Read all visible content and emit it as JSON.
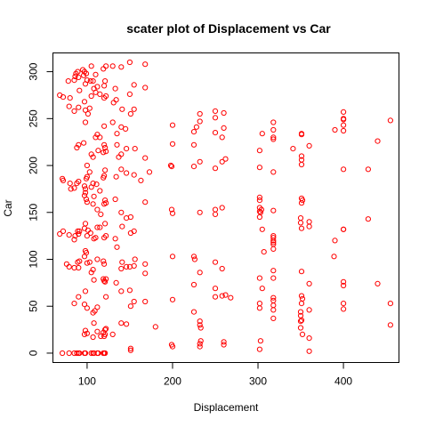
{
  "chart_data": {
    "type": "scatter",
    "title": "scater plot of Displacement vs Car",
    "xlabel": "Displacement",
    "ylabel": "Car",
    "xlim": [
      60,
      465
    ],
    "ylim": [
      -10,
      320
    ],
    "xticks": [
      100,
      200,
      300,
      400
    ],
    "yticks": [
      0,
      50,
      100,
      150,
      200,
      250,
      300
    ],
    "grid": false,
    "marker": "open-circle",
    "color": "#ff0000",
    "points": [
      [
        71,
        0
      ],
      [
        79,
        0
      ],
      [
        85,
        0
      ],
      [
        88,
        0
      ],
      [
        90,
        0
      ],
      [
        91,
        0
      ],
      [
        97,
        0
      ],
      [
        98,
        0
      ],
      [
        105,
        0
      ],
      [
        107,
        0
      ],
      [
        108,
        0
      ],
      [
        112,
        0
      ],
      [
        113,
        0
      ],
      [
        119,
        0
      ],
      [
        120,
        0
      ],
      [
        121,
        0
      ],
      [
        68,
        275
      ],
      [
        72,
        273
      ],
      [
        78,
        290
      ],
      [
        80,
        272
      ],
      [
        85,
        291
      ],
      [
        86,
        295
      ],
      [
        87,
        298
      ],
      [
        89,
        300
      ],
      [
        90,
        294
      ],
      [
        91,
        280
      ],
      [
        95,
        302
      ],
      [
        96,
        296
      ],
      [
        97,
        300
      ],
      [
        98,
        287
      ],
      [
        99,
        298
      ],
      [
        100,
        291
      ],
      [
        104,
        290
      ],
      [
        105,
        306
      ],
      [
        107,
        290
      ],
      [
        110,
        297
      ],
      [
        112,
        284
      ],
      [
        119,
        303
      ],
      [
        120,
        285
      ],
      [
        121,
        290
      ],
      [
        122,
        306
      ],
      [
        130,
        306
      ],
      [
        133,
        282
      ],
      [
        140,
        305
      ],
      [
        150,
        310
      ],
      [
        168,
        308
      ],
      [
        79,
        263
      ],
      [
        85,
        258
      ],
      [
        90,
        262
      ],
      [
        97,
        268
      ],
      [
        98,
        259
      ],
      [
        101,
        255
      ],
      [
        103,
        261
      ],
      [
        105,
        274
      ],
      [
        108,
        282
      ],
      [
        110,
        278
      ],
      [
        115,
        276
      ],
      [
        120,
        272
      ],
      [
        122,
        274
      ],
      [
        131,
        267
      ],
      [
        134,
        270
      ],
      [
        141,
        260
      ],
      [
        150,
        276
      ],
      [
        155,
        286
      ],
      [
        168,
        283
      ],
      [
        98,
        246
      ],
      [
        120,
        242
      ],
      [
        130,
        246
      ],
      [
        135,
        234
      ],
      [
        140,
        241
      ],
      [
        145,
        239
      ],
      [
        151,
        255
      ],
      [
        155,
        260
      ],
      [
        200,
        243
      ],
      [
        225,
        236
      ],
      [
        232,
        247
      ],
      [
        250,
        251
      ],
      [
        250,
        258
      ],
      [
        260,
        256
      ],
      [
        305,
        234
      ],
      [
        318,
        238
      ],
      [
        351,
        234
      ],
      [
        400,
        243
      ],
      [
        400,
        249
      ],
      [
        400,
        257
      ],
      [
        455,
        248
      ],
      [
        88,
        219
      ],
      [
        90,
        222
      ],
      [
        96,
        224
      ],
      [
        100,
        200
      ],
      [
        105,
        212
      ],
      [
        107,
        209
      ],
      [
        110,
        230
      ],
      [
        112,
        233
      ],
      [
        113,
        216
      ],
      [
        115,
        230
      ],
      [
        119,
        214
      ],
      [
        120,
        222
      ],
      [
        121,
        219
      ],
      [
        122,
        215
      ],
      [
        135,
        222
      ],
      [
        137,
        209
      ],
      [
        140,
        212
      ],
      [
        146,
        218
      ],
      [
        156,
        218
      ],
      [
        168,
        208
      ],
      [
        200,
        223
      ],
      [
        225,
        222
      ],
      [
        228,
        241
      ],
      [
        232,
        255
      ],
      [
        250,
        235
      ],
      [
        258,
        230
      ],
      [
        260,
        240
      ],
      [
        302,
        216
      ],
      [
        318,
        228
      ],
      [
        318,
        230
      ],
      [
        318,
        246
      ],
      [
        341,
        218
      ],
      [
        351,
        233
      ],
      [
        360,
        221
      ],
      [
        390,
        238
      ],
      [
        400,
        237
      ],
      [
        400,
        250
      ],
      [
        440,
        226
      ],
      [
        71,
        186
      ],
      [
        72,
        184
      ],
      [
        80,
        181
      ],
      [
        81,
        175
      ],
      [
        85,
        176
      ],
      [
        88,
        181
      ],
      [
        90,
        183
      ],
      [
        97,
        178
      ],
      [
        98,
        175
      ],
      [
        99,
        186
      ],
      [
        100,
        188
      ],
      [
        103,
        193
      ],
      [
        105,
        177
      ],
      [
        107,
        181
      ],
      [
        108,
        167
      ],
      [
        111,
        180
      ],
      [
        115,
        173
      ],
      [
        119,
        187
      ],
      [
        120,
        189
      ],
      [
        121,
        195
      ],
      [
        134,
        188
      ],
      [
        140,
        196
      ],
      [
        146,
        192
      ],
      [
        155,
        190
      ],
      [
        163,
        184
      ],
      [
        173,
        193
      ],
      [
        198,
        200
      ],
      [
        199,
        199
      ],
      [
        225,
        199
      ],
      [
        232,
        204
      ],
      [
        250,
        197
      ],
      [
        258,
        204
      ],
      [
        262,
        207
      ],
      [
        302,
        198
      ],
      [
        318,
        193
      ],
      [
        351,
        201
      ],
      [
        351,
        206
      ],
      [
        351,
        210
      ],
      [
        400,
        196
      ],
      [
        429,
        196
      ],
      [
        97,
        168
      ],
      [
        98,
        171
      ],
      [
        99,
        164
      ],
      [
        100,
        161
      ],
      [
        107,
        159
      ],
      [
        112,
        153
      ],
      [
        116,
        148
      ],
      [
        120,
        159
      ],
      [
        121,
        163
      ],
      [
        122,
        160
      ],
      [
        133,
        164
      ],
      [
        140,
        150
      ],
      [
        146,
        144
      ],
      [
        151,
        145
      ],
      [
        168,
        161
      ],
      [
        199,
        153
      ],
      [
        200,
        149
      ],
      [
        232,
        150
      ],
      [
        250,
        148
      ],
      [
        250,
        153
      ],
      [
        258,
        155
      ],
      [
        302,
        163
      ],
      [
        302,
        166
      ],
      [
        302,
        155
      ],
      [
        302,
        151
      ],
      [
        302,
        145
      ],
      [
        303,
        150
      ],
      [
        304,
        153
      ],
      [
        318,
        152
      ],
      [
        350,
        144
      ],
      [
        351,
        160
      ],
      [
        351,
        165
      ],
      [
        352,
        163
      ],
      [
        360,
        140
      ],
      [
        400,
        132
      ],
      [
        429,
        143
      ],
      [
        68,
        127
      ],
      [
        72,
        130
      ],
      [
        79,
        126
      ],
      [
        85,
        121
      ],
      [
        86,
        125
      ],
      [
        89,
        130
      ],
      [
        90,
        127
      ],
      [
        91,
        130
      ],
      [
        97,
        133
      ],
      [
        98,
        138
      ],
      [
        100,
        125
      ],
      [
        101,
        131
      ],
      [
        104,
        128
      ],
      [
        108,
        122
      ],
      [
        110,
        123
      ],
      [
        112,
        134
      ],
      [
        115,
        134
      ],
      [
        120,
        123
      ],
      [
        121,
        138
      ],
      [
        122,
        125
      ],
      [
        133,
        122
      ],
      [
        135,
        113
      ],
      [
        141,
        135
      ],
      [
        151,
        128
      ],
      [
        155,
        130
      ],
      [
        305,
        132
      ],
      [
        307,
        108
      ],
      [
        318,
        120
      ],
      [
        318,
        118
      ],
      [
        318,
        123
      ],
      [
        318,
        116
      ],
      [
        318,
        111
      ],
      [
        318,
        125
      ],
      [
        350,
        139
      ],
      [
        351,
        133
      ],
      [
        360,
        135
      ],
      [
        390,
        120
      ],
      [
        400,
        132
      ],
      [
        76,
        95
      ],
      [
        79,
        92
      ],
      [
        85,
        91
      ],
      [
        89,
        97
      ],
      [
        90,
        91
      ],
      [
        91,
        98
      ],
      [
        97,
        103
      ],
      [
        98,
        109
      ],
      [
        99,
        107
      ],
      [
        100,
        96
      ],
      [
        103,
        97
      ],
      [
        105,
        86
      ],
      [
        107,
        89
      ],
      [
        108,
        78
      ],
      [
        112,
        100
      ],
      [
        119,
        98
      ],
      [
        120,
        95
      ],
      [
        122,
        79
      ],
      [
        140,
        90
      ],
      [
        141,
        97
      ],
      [
        146,
        92
      ],
      [
        150,
        92
      ],
      [
        155,
        93
      ],
      [
        156,
        100
      ],
      [
        168,
        85
      ],
      [
        168,
        95
      ],
      [
        200,
        103
      ],
      [
        225,
        103
      ],
      [
        226,
        100
      ],
      [
        232,
        86
      ],
      [
        250,
        97
      ],
      [
        258,
        90
      ],
      [
        302,
        80
      ],
      [
        318,
        80
      ],
      [
        318,
        88
      ],
      [
        351,
        87
      ],
      [
        360,
        74
      ],
      [
        389,
        103
      ],
      [
        400,
        76
      ],
      [
        400,
        72
      ],
      [
        440,
        74
      ],
      [
        455,
        53
      ],
      [
        85,
        53
      ],
      [
        90,
        60
      ],
      [
        97,
        52
      ],
      [
        98,
        66
      ],
      [
        100,
        48
      ],
      [
        107,
        43
      ],
      [
        109,
        45
      ],
      [
        112,
        49
      ],
      [
        119,
        79
      ],
      [
        120,
        77
      ],
      [
        121,
        76
      ],
      [
        122,
        60
      ],
      [
        134,
        75
      ],
      [
        140,
        66
      ],
      [
        150,
        67
      ],
      [
        151,
        50
      ],
      [
        155,
        55
      ],
      [
        168,
        55
      ],
      [
        200,
        57
      ],
      [
        225,
        73
      ],
      [
        225,
        44
      ],
      [
        232,
        34
      ],
      [
        232,
        30
      ],
      [
        233,
        27
      ],
      [
        250,
        69
      ],
      [
        250,
        60
      ],
      [
        258,
        61
      ],
      [
        262,
        62
      ],
      [
        268,
        59
      ],
      [
        302,
        53
      ],
      [
        302,
        48
      ],
      [
        305,
        69
      ],
      [
        318,
        51
      ],
      [
        318,
        56
      ],
      [
        318,
        59
      ],
      [
        318,
        46
      ],
      [
        350,
        44
      ],
      [
        350,
        40
      ],
      [
        350,
        34
      ],
      [
        351,
        53
      ],
      [
        351,
        61
      ],
      [
        352,
        58
      ],
      [
        360,
        46
      ],
      [
        400,
        53
      ],
      [
        400,
        47
      ],
      [
        455,
        30
      ],
      [
        97,
        20
      ],
      [
        98,
        24
      ],
      [
        100,
        21
      ],
      [
        107,
        17
      ],
      [
        108,
        32
      ],
      [
        112,
        23
      ],
      [
        116,
        18
      ],
      [
        119,
        22
      ],
      [
        120,
        18
      ],
      [
        121,
        25
      ],
      [
        121,
        20
      ],
      [
        122,
        26
      ],
      [
        130,
        20
      ],
      [
        140,
        32
      ],
      [
        146,
        31
      ],
      [
        151,
        3
      ],
      [
        151,
        5
      ],
      [
        180,
        28
      ],
      [
        199,
        9
      ],
      [
        200,
        7
      ],
      [
        232,
        7
      ],
      [
        232,
        10
      ],
      [
        233,
        13
      ],
      [
        260,
        9
      ],
      [
        260,
        12
      ],
      [
        302,
        4
      ],
      [
        303,
        13
      ],
      [
        318,
        37
      ],
      [
        350,
        27
      ],
      [
        351,
        35
      ],
      [
        352,
        20
      ],
      [
        360,
        16
      ],
      [
        360,
        2
      ]
    ]
  }
}
